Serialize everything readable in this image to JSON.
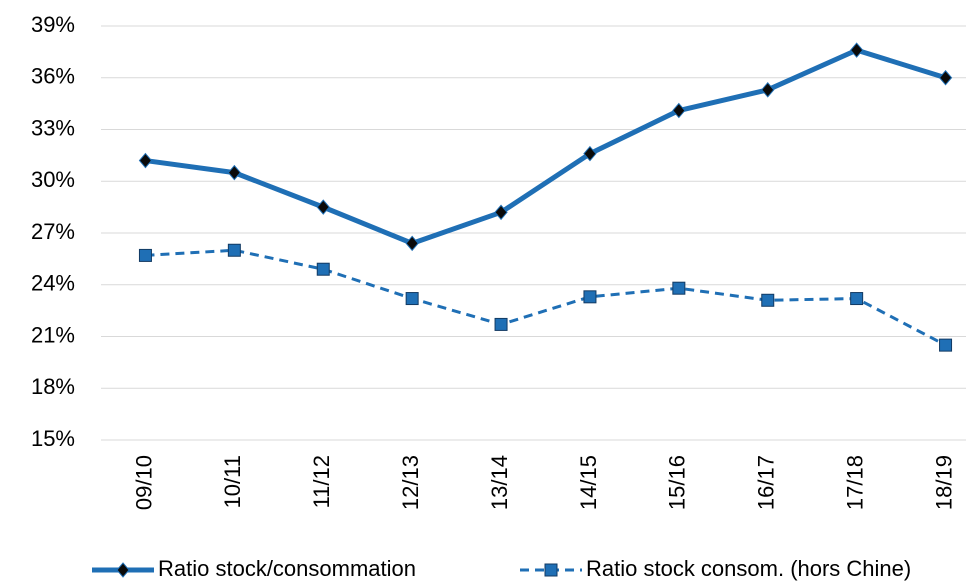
{
  "chart_data": {
    "type": "line",
    "categories": [
      "09/10",
      "10/11",
      "11/12",
      "12/13",
      "13/14",
      "14/15",
      "15/16",
      "16/17",
      "17/18",
      "18/19"
    ],
    "series": [
      {
        "name": "Ratio stock/consommation",
        "color": "#1f6fb5",
        "dash": false,
        "marker": "diamond",
        "values": [
          31.2,
          30.5,
          28.5,
          26.4,
          28.2,
          31.6,
          34.1,
          35.3,
          37.6,
          36.0
        ]
      },
      {
        "name": "Ratio stock consom. (hors Chine)",
        "color": "#1f6fb5",
        "dash": true,
        "marker": "square",
        "values": [
          25.7,
          26.0,
          24.9,
          23.2,
          21.7,
          23.3,
          23.8,
          23.1,
          23.2,
          20.5
        ]
      }
    ],
    "ylim": [
      15,
      39
    ],
    "yticks": [
      {
        "value": 15,
        "label": "15%"
      },
      {
        "value": 18,
        "label": "18%"
      },
      {
        "value": 21,
        "label": "21%"
      },
      {
        "value": 24,
        "label": "24%"
      },
      {
        "value": 27,
        "label": "27%"
      },
      {
        "value": 30,
        "label": "30%"
      },
      {
        "value": 33,
        "label": "33%"
      },
      {
        "value": 36,
        "label": "36%"
      },
      {
        "value": 39,
        "label": "39%"
      }
    ],
    "grid": true
  }
}
